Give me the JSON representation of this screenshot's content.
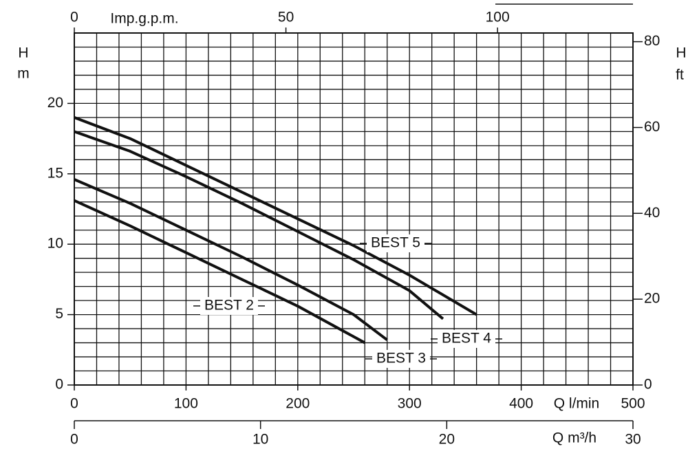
{
  "chart_data": {
    "type": "line",
    "x_label": "Q l/min",
    "x2_label": "Q m³/h",
    "x3_label": "Imp.g.p.m.",
    "y_label_symbol": "H",
    "y_label_unit": "m",
    "y2_label_symbol": "H",
    "y2_label_unit": "ft",
    "xlim": [
      0,
      500
    ],
    "xticks": [
      0,
      100,
      200,
      300,
      400,
      500
    ],
    "x2lim": [
      0,
      30
    ],
    "x2ticks": [
      0,
      10,
      20,
      30
    ],
    "x3lim": [
      0,
      132
    ],
    "x3ticks": [
      0,
      50,
      100
    ],
    "ylim": [
      0,
      25
    ],
    "yticks": [
      0,
      5,
      10,
      15,
      20
    ],
    "y2lim": [
      0,
      82.02
    ],
    "y2ticks": [
      0,
      20,
      40,
      60,
      80
    ],
    "grid": true,
    "x_grid_step": 20,
    "y_grid_step": 1,
    "series": [
      {
        "name": "BEST 5",
        "color": "#111111",
        "x": [
          0,
          50,
          100,
          150,
          200,
          250,
          300,
          360
        ],
        "values": [
          19,
          17.5,
          15.6,
          13.7,
          11.8,
          9.9,
          7.8,
          5.0
        ]
      },
      {
        "name": "BEST 4",
        "color": "#111111",
        "x": [
          0,
          50,
          100,
          150,
          200,
          250,
          300,
          330
        ],
        "values": [
          18,
          16.6,
          14.8,
          12.9,
          10.9,
          8.9,
          6.7,
          4.7
        ]
      },
      {
        "name": "BEST 3",
        "color": "#111111",
        "x": [
          0,
          50,
          100,
          150,
          200,
          250,
          280
        ],
        "values": [
          14.6,
          12.9,
          11.0,
          9.1,
          7.1,
          5.0,
          3.2
        ]
      },
      {
        "name": "BEST 2",
        "color": "#111111",
        "x": [
          0,
          50,
          100,
          150,
          200,
          260
        ],
        "values": [
          13.1,
          11.3,
          9.4,
          7.5,
          5.6,
          3.0
        ]
      }
    ]
  }
}
